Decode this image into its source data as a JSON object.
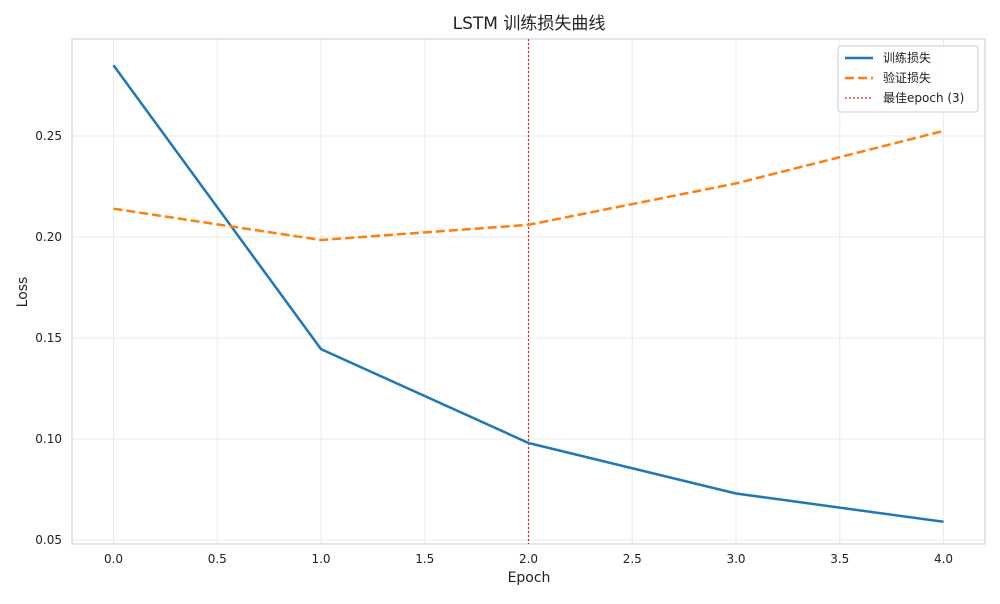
{
  "chart_data": {
    "type": "line",
    "title": "LSTM 训练损失曲线",
    "xlabel": "Epoch",
    "ylabel": "Loss",
    "xlim": [
      -0.2,
      4.2
    ],
    "ylim": [
      0.048,
      0.298
    ],
    "xticks": [
      0.0,
      0.5,
      1.0,
      1.5,
      2.0,
      2.5,
      3.0,
      3.5,
      4.0
    ],
    "xtick_labels": [
      "0.0",
      "0.5",
      "1.0",
      "1.5",
      "2.0",
      "2.5",
      "3.0",
      "3.5",
      "4.0"
    ],
    "yticks": [
      0.05,
      0.1,
      0.15,
      0.2,
      0.25
    ],
    "ytick_labels": [
      "0.05",
      "0.10",
      "0.15",
      "0.20",
      "0.25"
    ],
    "grid": true,
    "legend_position": "top-right",
    "x": [
      0,
      1,
      2,
      3,
      4
    ],
    "series": [
      {
        "name": "训练损失",
        "values": [
          0.285,
          0.1445,
          0.098,
          0.073,
          0.059
        ],
        "color": "#1f77b4",
        "style": "solid"
      },
      {
        "name": "验证损失",
        "values": [
          0.214,
          0.1985,
          0.206,
          0.2265,
          0.2525
        ],
        "color": "#ff7f0e",
        "style": "dashed"
      }
    ],
    "vline": {
      "name": "最佳epoch (3)",
      "x": 2,
      "color": "#d62728",
      "style": "dotted"
    }
  }
}
